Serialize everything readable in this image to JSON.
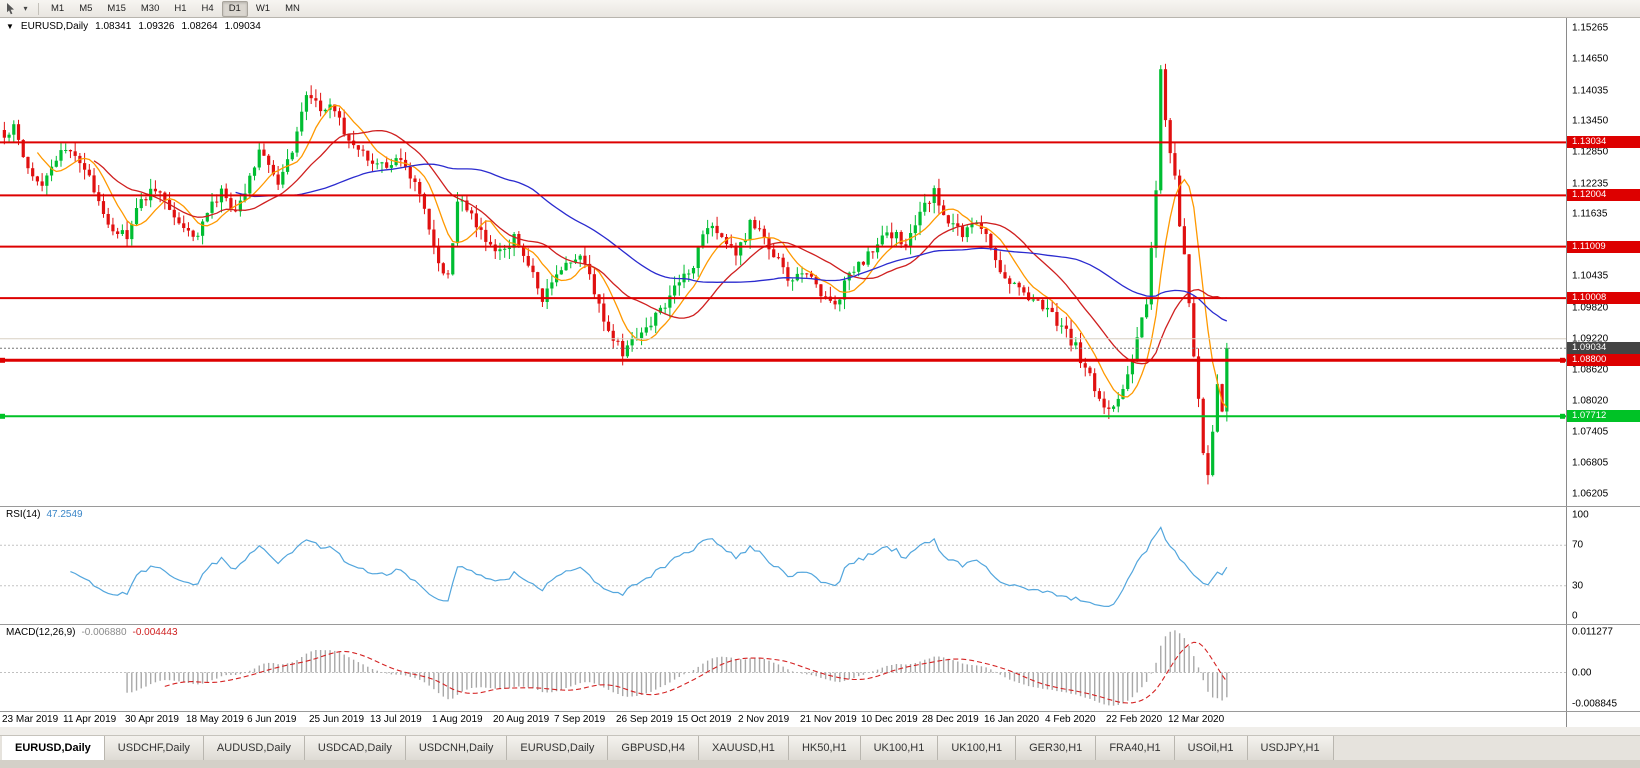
{
  "toolbar": {
    "timeframes": [
      "M1",
      "M5",
      "M15",
      "M30",
      "H1",
      "H4",
      "D1",
      "W1",
      "MN"
    ],
    "active_timeframe": "D1"
  },
  "colors": {
    "up_candle": "#00bd32",
    "down_candle": "#e01010",
    "ma_fast": "#ff9900",
    "ma_mid": "#cf2020",
    "ma_slow": "#2b2bcf",
    "rsi_line": "#53a6dd",
    "macd_hist": "#a8a8a8",
    "macd_signal": "#d42222",
    "hline_red": "#dd0000",
    "hline_green": "#00c226",
    "current_price_tag": "#444444",
    "axis_text": "#111111"
  },
  "chart": {
    "info": {
      "symbol": "EURUSD,Daily",
      "open": "1.08341",
      "high": "1.09326",
      "low": "1.08264",
      "close": "1.09034"
    },
    "y_axis_labels": [
      "1.15265",
      "1.14650",
      "1.14035",
      "1.13450",
      "1.12850",
      "1.12235",
      "1.11635",
      "1.11020",
      "1.10435",
      "1.09820",
      "1.09220",
      "1.08620",
      "1.08020",
      "1.07405",
      "1.06805",
      "1.06205"
    ],
    "x_axis_labels": [
      "23 Mar 2019",
      "11 Apr 2019",
      "30 Apr 2019",
      "18 May 2019",
      "6 Jun 2019",
      "25 Jun 2019",
      "13 Jul 2019",
      "1 Aug 2019",
      "20 Aug 2019",
      "7 Sep 2019",
      "26 Sep 2019",
      "15 Oct 2019",
      "2 Nov 2019",
      "21 Nov 2019",
      "10 Dec 2019",
      "28 Dec 2019",
      "16 Jan 2020",
      "4 Feb 2020",
      "22 Feb 2020",
      "12 Mar 2020"
    ],
    "hlines": [
      {
        "price": 1.13034,
        "label": "1.13034",
        "color": "#dd0000",
        "width": 2,
        "handles": false
      },
      {
        "price": 1.12004,
        "label": "1.12004",
        "color": "#dd0000",
        "width": 2,
        "handles": false
      },
      {
        "price": 1.11009,
        "label": "1.11009",
        "color": "#dd0000",
        "width": 2,
        "handles": false
      },
      {
        "price": 1.10008,
        "label": "1.10008",
        "color": "#dd0000",
        "width": 2,
        "handles": false
      },
      {
        "price": 1.0922,
        "label": null,
        "color": "#d8d0c4",
        "width": 1,
        "handles": false
      },
      {
        "price": 1.088,
        "label": "1.08800",
        "color": "#dd0000",
        "width": 3,
        "handles": true
      },
      {
        "price": 1.07712,
        "label": "1.07712",
        "color": "#00c226",
        "width": 2,
        "handles": true
      }
    ],
    "current_price": {
      "value": 1.09034,
      "label": "1.09034"
    }
  },
  "chart_data": {
    "type": "candlestick",
    "symbol": "EURUSD",
    "timeframe": "Daily",
    "candle_count": 260,
    "price_top": 1.1545,
    "price_bottom": 1.0597,
    "plot_step": 4.72,
    "labels_per_candles": 13,
    "close_keyframes": [
      [
        0,
        1.131
      ],
      [
        2,
        1.134
      ],
      [
        5,
        1.1255
      ],
      [
        8,
        1.1225
      ],
      [
        11,
        1.127
      ],
      [
        14,
        1.1295
      ],
      [
        17,
        1.125
      ],
      [
        20,
        1.119
      ],
      [
        23,
        1.1135
      ],
      [
        26,
        1.112
      ],
      [
        29,
        1.119
      ],
      [
        32,
        1.1215
      ],
      [
        35,
        1.1175
      ],
      [
        38,
        1.1135
      ],
      [
        40,
        1.1115
      ],
      [
        43,
        1.1165
      ],
      [
        46,
        1.1205
      ],
      [
        49,
        1.1165
      ],
      [
        52,
        1.1235
      ],
      [
        54,
        1.1295
      ],
      [
        56,
        1.1255
      ],
      [
        58,
        1.1215
      ],
      [
        61,
        1.129
      ],
      [
        63,
        1.137
      ],
      [
        65,
        1.14
      ],
      [
        67,
        1.1355
      ],
      [
        69,
        1.1385
      ],
      [
        72,
        1.133
      ],
      [
        75,
        1.1285
      ],
      [
        78,
        1.127
      ],
      [
        81,
        1.125
      ],
      [
        84,
        1.127
      ],
      [
        87,
        1.1225
      ],
      [
        90,
        1.114
      ],
      [
        92,
        1.106
      ],
      [
        94,
        1.104
      ],
      [
        96,
        1.119
      ],
      [
        99,
        1.1165
      ],
      [
        102,
        1.1105
      ],
      [
        105,
        1.109
      ],
      [
        108,
        1.1115
      ],
      [
        111,
        1.107
      ],
      [
        114,
        1.0995
      ],
      [
        116,
        1.103
      ],
      [
        119,
        1.1065
      ],
      [
        122,
        1.1085
      ],
      [
        125,
        1.1015
      ],
      [
        128,
        1.0935
      ],
      [
        131,
        1.0895
      ],
      [
        134,
        1.0925
      ],
      [
        137,
        1.0955
      ],
      [
        140,
        1.099
      ],
      [
        143,
        1.1035
      ],
      [
        146,
        1.107
      ],
      [
        149,
        1.1145
      ],
      [
        152,
        1.1125
      ],
      [
        155,
        1.108
      ],
      [
        158,
        1.1145
      ],
      [
        161,
        1.1115
      ],
      [
        164,
        1.107
      ],
      [
        167,
        1.103
      ],
      [
        170,
        1.1055
      ],
      [
        173,
        1.101
      ],
      [
        176,
        1.099
      ],
      [
        179,
        1.1045
      ],
      [
        182,
        1.1075
      ],
      [
        185,
        1.1105
      ],
      [
        188,
        1.1125
      ],
      [
        191,
        1.1105
      ],
      [
        194,
        1.1165
      ],
      [
        197,
        1.1205
      ],
      [
        200,
        1.1155
      ],
      [
        203,
        1.112
      ],
      [
        206,
        1.1155
      ],
      [
        209,
        1.11
      ],
      [
        212,
        1.104
      ],
      [
        215,
        1.102
      ],
      [
        218,
        1.1
      ],
      [
        221,
        1.098
      ],
      [
        224,
        1.0945
      ],
      [
        227,
        1.0905
      ],
      [
        230,
        1.0845
      ],
      [
        233,
        1.079
      ],
      [
        236,
        1.08
      ],
      [
        238,
        1.0855
      ],
      [
        240,
        1.0925
      ],
      [
        242,
        1.099
      ],
      [
        243,
        1.109
      ],
      [
        244,
        1.12
      ],
      [
        245,
        1.1455
      ],
      [
        246,
        1.134
      ],
      [
        247,
        1.129
      ],
      [
        248,
        1.123
      ],
      [
        249,
        1.114
      ],
      [
        250,
        1.1075
      ],
      [
        251,
        1.099
      ],
      [
        252,
        1.0895
      ],
      [
        253,
        1.0795
      ],
      [
        254,
        1.0695
      ],
      [
        255,
        1.0655
      ],
      [
        256,
        1.0745
      ],
      [
        257,
        1.0825
      ],
      [
        258,
        1.0785
      ],
      [
        259,
        1.0903
      ]
    ],
    "moving_averages": [
      {
        "name": "MA-fast",
        "period": 8,
        "color_key": "ma_fast"
      },
      {
        "name": "MA-mid",
        "period": 20,
        "color_key": "ma_mid"
      },
      {
        "name": "MA-slow",
        "period": 50,
        "color_key": "ma_slow"
      }
    ]
  },
  "rsi_panel": {
    "name": "RSI(14)",
    "value": "47.2549",
    "period": 14,
    "levels": [
      70,
      30
    ],
    "axis_labels": [
      "100",
      "70",
      "30",
      "0"
    ]
  },
  "macd_panel": {
    "name": "MACD(12,26,9)",
    "main_value": "-0.006880",
    "signal_value": "-0.004443",
    "fast": 12,
    "slow": 26,
    "signal": 9,
    "axis_top": "0.011277",
    "axis_zero": "0.00",
    "axis_bottom": "-0.008845"
  },
  "tabs": {
    "items": [
      {
        "label": "EURUSD,Daily",
        "active": true
      },
      {
        "label": "USDCHF,Daily",
        "active": false
      },
      {
        "label": "AUDUSD,Daily",
        "active": false
      },
      {
        "label": "USDCAD,Daily",
        "active": false
      },
      {
        "label": "USDCNH,Daily",
        "active": false
      },
      {
        "label": "EURUSD,Daily",
        "active": false
      },
      {
        "label": "GBPUSD,H4",
        "active": false
      },
      {
        "label": "XAUUSD,H1",
        "active": false
      },
      {
        "label": "HK50,H1",
        "active": false
      },
      {
        "label": "UK100,H1",
        "active": false
      },
      {
        "label": "UK100,H1",
        "active": false
      },
      {
        "label": "GER30,H1",
        "active": false
      },
      {
        "label": "FRA40,H1",
        "active": false
      },
      {
        "label": "USOil,H1",
        "active": false
      },
      {
        "label": "USDJPY,H1",
        "active": false
      }
    ]
  }
}
